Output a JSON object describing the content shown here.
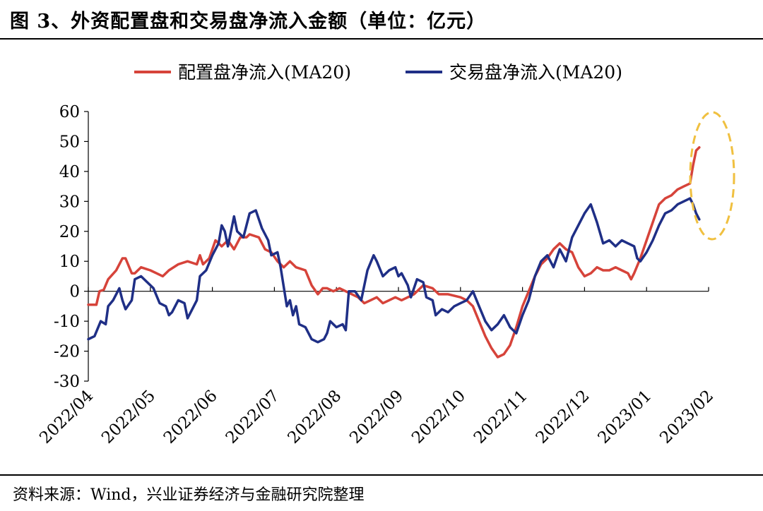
{
  "header": {
    "title": "图 3、外资配置盘和交易盘净流入金额（单位：亿元）"
  },
  "footer": {
    "source": "资料来源：Wind，兴业证券经济与金融研究院整理"
  },
  "chart_data": {
    "type": "line",
    "title": "",
    "ylim": [
      -30,
      60
    ],
    "yticks": [
      "60",
      "50",
      "40",
      "30",
      "20",
      "10",
      "0",
      "-10",
      "-20",
      "-30"
    ],
    "xticks": [
      "2022/04",
      "2022/05",
      "2022/06",
      "2022/07",
      "2022/08",
      "2022/09",
      "2022/10",
      "2022/11",
      "2022/12",
      "2023/01",
      "2023/02"
    ],
    "legend_position": "top",
    "annotation": "dashed-ellipse-highlight",
    "colors": {
      "allocation": "#d6433a",
      "trading": "#1f2f86",
      "annotation": "#f0c040"
    },
    "series": [
      {
        "name": "配置盘净流入(MA20)",
        "color": "#d6433a",
        "points": [
          [
            0.0,
            -4.5
          ],
          [
            0.13,
            -4.5
          ],
          [
            0.18,
            0
          ],
          [
            0.25,
            0.5
          ],
          [
            0.32,
            4
          ],
          [
            0.45,
            7
          ],
          [
            0.55,
            11
          ],
          [
            0.6,
            11
          ],
          [
            0.7,
            6
          ],
          [
            0.75,
            6
          ],
          [
            0.85,
            8
          ],
          [
            1.0,
            7
          ],
          [
            1.1,
            6
          ],
          [
            1.2,
            5
          ],
          [
            1.3,
            7
          ],
          [
            1.45,
            9
          ],
          [
            1.6,
            10
          ],
          [
            1.75,
            9
          ],
          [
            1.8,
            12
          ],
          [
            1.85,
            9
          ],
          [
            1.95,
            11
          ],
          [
            2.05,
            17
          ],
          [
            2.15,
            15
          ],
          [
            2.25,
            17
          ],
          [
            2.35,
            14
          ],
          [
            2.45,
            18
          ],
          [
            2.55,
            18
          ],
          [
            2.6,
            19
          ],
          [
            2.75,
            18
          ],
          [
            2.85,
            14
          ],
          [
            2.95,
            13
          ],
          [
            3.05,
            10
          ],
          [
            3.15,
            8
          ],
          [
            3.25,
            10
          ],
          [
            3.35,
            8
          ],
          [
            3.5,
            7
          ],
          [
            3.6,
            2
          ],
          [
            3.7,
            -1
          ],
          [
            3.78,
            1
          ],
          [
            3.85,
            1
          ],
          [
            3.95,
            0
          ],
          [
            4.05,
            1
          ],
          [
            4.15,
            0
          ],
          [
            4.25,
            -1
          ],
          [
            4.35,
            -2
          ],
          [
            4.45,
            -4
          ],
          [
            4.55,
            -3
          ],
          [
            4.65,
            -2
          ],
          [
            4.75,
            -4
          ],
          [
            4.85,
            -3
          ],
          [
            4.95,
            -2
          ],
          [
            5.05,
            -3
          ],
          [
            5.15,
            -2
          ],
          [
            5.25,
            -1
          ],
          [
            5.4,
            2
          ],
          [
            5.55,
            1
          ],
          [
            5.65,
            -1
          ],
          [
            5.8,
            -1
          ],
          [
            6.0,
            -2
          ],
          [
            6.1,
            -3
          ],
          [
            6.2,
            -5
          ],
          [
            6.3,
            -10
          ],
          [
            6.4,
            -15
          ],
          [
            6.5,
            -19
          ],
          [
            6.6,
            -22
          ],
          [
            6.7,
            -21
          ],
          [
            6.8,
            -18
          ],
          [
            6.9,
            -12
          ],
          [
            7.0,
            -5
          ],
          [
            7.1,
            0
          ],
          [
            7.2,
            5
          ],
          [
            7.3,
            9
          ],
          [
            7.4,
            11
          ],
          [
            7.5,
            14
          ],
          [
            7.6,
            16
          ],
          [
            7.7,
            14
          ],
          [
            7.8,
            13
          ],
          [
            7.9,
            8
          ],
          [
            8.0,
            5
          ],
          [
            8.1,
            6
          ],
          [
            8.2,
            8
          ],
          [
            8.3,
            7
          ],
          [
            8.4,
            7
          ],
          [
            8.5,
            8
          ],
          [
            8.6,
            7
          ],
          [
            8.7,
            6
          ],
          [
            8.75,
            4
          ],
          [
            8.8,
            6
          ],
          [
            8.9,
            11
          ],
          [
            9.0,
            17
          ],
          [
            9.1,
            23
          ],
          [
            9.2,
            29
          ],
          [
            9.3,
            31
          ],
          [
            9.4,
            32
          ],
          [
            9.5,
            34
          ],
          [
            9.6,
            35
          ],
          [
            9.7,
            36
          ],
          [
            9.75,
            42
          ],
          [
            9.8,
            47
          ],
          [
            9.85,
            48
          ]
        ]
      },
      {
        "name": "交易盘净流入(MA20)",
        "color": "#1f2f86",
        "points": [
          [
            0.0,
            -16
          ],
          [
            0.1,
            -15
          ],
          [
            0.2,
            -10
          ],
          [
            0.28,
            -11
          ],
          [
            0.32,
            -5
          ],
          [
            0.4,
            -3
          ],
          [
            0.5,
            1
          ],
          [
            0.55,
            -3
          ],
          [
            0.6,
            -6
          ],
          [
            0.7,
            -3
          ],
          [
            0.75,
            4
          ],
          [
            0.85,
            5
          ],
          [
            0.95,
            3
          ],
          [
            1.05,
            1
          ],
          [
            1.15,
            -4
          ],
          [
            1.25,
            -5
          ],
          [
            1.3,
            -8
          ],
          [
            1.35,
            -7
          ],
          [
            1.4,
            -5
          ],
          [
            1.45,
            -3
          ],
          [
            1.55,
            -4
          ],
          [
            1.6,
            -9
          ],
          [
            1.65,
            -7
          ],
          [
            1.75,
            -3
          ],
          [
            1.8,
            5
          ],
          [
            1.9,
            7
          ],
          [
            2.0,
            12
          ],
          [
            2.1,
            16
          ],
          [
            2.15,
            22
          ],
          [
            2.2,
            20
          ],
          [
            2.25,
            15
          ],
          [
            2.35,
            25
          ],
          [
            2.4,
            20
          ],
          [
            2.5,
            18
          ],
          [
            2.55,
            22
          ],
          [
            2.6,
            26
          ],
          [
            2.7,
            27
          ],
          [
            2.8,
            21
          ],
          [
            2.9,
            17
          ],
          [
            2.95,
            12
          ],
          [
            3.05,
            13
          ],
          [
            3.1,
            8
          ],
          [
            3.2,
            -5
          ],
          [
            3.25,
            -3
          ],
          [
            3.3,
            -8
          ],
          [
            3.35,
            -5
          ],
          [
            3.4,
            -11
          ],
          [
            3.5,
            -12
          ],
          [
            3.6,
            -16
          ],
          [
            3.7,
            -17
          ],
          [
            3.8,
            -16
          ],
          [
            3.85,
            -14
          ],
          [
            3.9,
            -10
          ],
          [
            4.0,
            -12
          ],
          [
            4.1,
            -11
          ],
          [
            4.15,
            -13
          ],
          [
            4.2,
            0
          ],
          [
            4.3,
            0
          ],
          [
            4.4,
            -3
          ],
          [
            4.5,
            7
          ],
          [
            4.6,
            12
          ],
          [
            4.65,
            10
          ],
          [
            4.75,
            5
          ],
          [
            4.85,
            7
          ],
          [
            4.95,
            8
          ],
          [
            5.0,
            5
          ],
          [
            5.05,
            6
          ],
          [
            5.15,
            2
          ],
          [
            5.2,
            -2
          ],
          [
            5.3,
            4
          ],
          [
            5.4,
            3
          ],
          [
            5.45,
            -2
          ],
          [
            5.55,
            -3
          ],
          [
            5.6,
            -8
          ],
          [
            5.7,
            -6
          ],
          [
            5.8,
            -7
          ],
          [
            5.9,
            -5
          ],
          [
            6.0,
            -4
          ],
          [
            6.1,
            -3
          ],
          [
            6.2,
            0
          ],
          [
            6.3,
            -5
          ],
          [
            6.4,
            -10
          ],
          [
            6.5,
            -13
          ],
          [
            6.6,
            -11
          ],
          [
            6.7,
            -8
          ],
          [
            6.8,
            -12
          ],
          [
            6.9,
            -14
          ],
          [
            7.0,
            -8
          ],
          [
            7.1,
            -3
          ],
          [
            7.2,
            5
          ],
          [
            7.3,
            10
          ],
          [
            7.4,
            12
          ],
          [
            7.5,
            8
          ],
          [
            7.6,
            14
          ],
          [
            7.7,
            10
          ],
          [
            7.8,
            18
          ],
          [
            7.9,
            22
          ],
          [
            8.0,
            26
          ],
          [
            8.1,
            29
          ],
          [
            8.2,
            23
          ],
          [
            8.3,
            16
          ],
          [
            8.4,
            17
          ],
          [
            8.5,
            15
          ],
          [
            8.6,
            17
          ],
          [
            8.7,
            16
          ],
          [
            8.8,
            15
          ],
          [
            8.85,
            11
          ],
          [
            8.9,
            10
          ],
          [
            9.0,
            13
          ],
          [
            9.1,
            17
          ],
          [
            9.2,
            22
          ],
          [
            9.3,
            26
          ],
          [
            9.4,
            27
          ],
          [
            9.5,
            29
          ],
          [
            9.6,
            30
          ],
          [
            9.7,
            31
          ],
          [
            9.75,
            29
          ],
          [
            9.8,
            26
          ],
          [
            9.85,
            24
          ]
        ]
      }
    ]
  }
}
